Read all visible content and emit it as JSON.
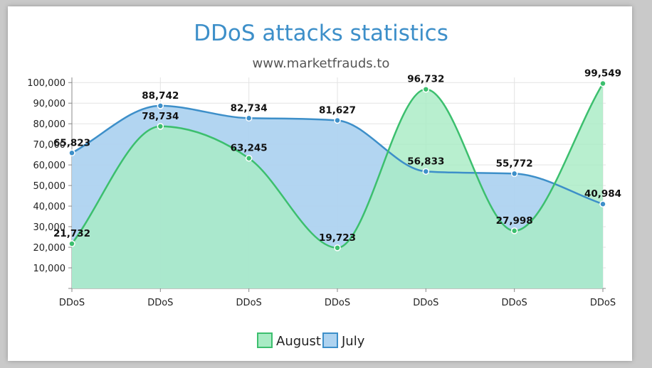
{
  "chart_data": {
    "type": "area",
    "title": "DDoS attacks statistics",
    "subtitle": "www.marketfrauds.to",
    "categories": [
      "DDoS",
      "DDoS",
      "DDoS",
      "DDoS",
      "DDoS",
      "DDoS",
      "DDoS"
    ],
    "ylim": [
      0,
      100000
    ],
    "yticks": [
      10000,
      20000,
      30000,
      40000,
      50000,
      60000,
      70000,
      80000,
      90000,
      100000
    ],
    "ytick_labels": [
      "10,000",
      "20,000",
      "30,000",
      "40,000",
      "50,000",
      "60,000",
      "70,000",
      "80,000",
      "90,000",
      "100,000"
    ],
    "grid": true,
    "legend_position": "bottom-center",
    "series": [
      {
        "name": "August",
        "values": [
          21732,
          78734,
          63245,
          19723,
          96732,
          27998,
          99549
        ],
        "labels": [
          "21,732",
          "78,734",
          "63,245",
          "19,723",
          "96,732",
          "27,998",
          "99,549"
        ],
        "line_color": "#3cbf6e",
        "fill_color": "#a8ebc4"
      },
      {
        "name": "July",
        "values": [
          65823,
          88742,
          82734,
          81627,
          56833,
          55772,
          40984
        ],
        "labels": [
          "65,823",
          "88,742",
          "82,734",
          "81,627",
          "56,833",
          "55,772",
          "40,984"
        ],
        "line_color": "#3d8fc9",
        "fill_color": "#aed3f0"
      }
    ],
    "overlap_color": "#7cd3b6"
  }
}
